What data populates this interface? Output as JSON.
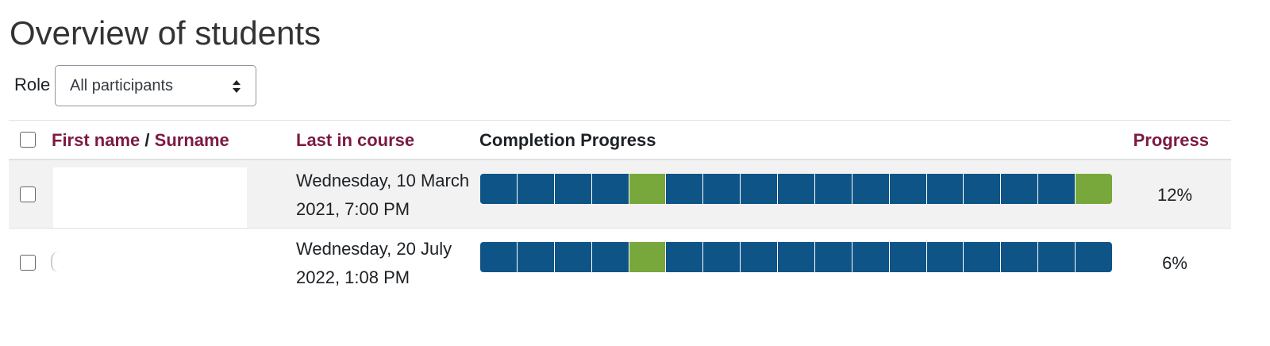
{
  "header": {
    "title": "Overview of students"
  },
  "filter": {
    "label": "Role",
    "value": "All participants"
  },
  "table": {
    "columns": {
      "first_name": "First name",
      "separator": "/",
      "surname": "Surname",
      "last_in_course": "Last in course",
      "completion": "Completion Progress",
      "progress": "Progress"
    },
    "rows": [
      {
        "last_in_course": [
          "Wednesday, 10 March",
          "2021, 7:00 PM"
        ],
        "progress": "12%",
        "blocks": [
          "#0f5487",
          "#0f5487",
          "#0f5487",
          "#0f5487",
          "#78a73b",
          "#0f5487",
          "#0f5487",
          "#0f5487",
          "#0f5487",
          "#0f5487",
          "#0f5487",
          "#0f5487",
          "#0f5487",
          "#0f5487",
          "#0f5487",
          "#0f5487",
          "#78a73b"
        ]
      },
      {
        "last_in_course": [
          "Wednesday, 20 July",
          "2022, 1:08 PM"
        ],
        "progress": "6%",
        "blocks": [
          "#0f5487",
          "#0f5487",
          "#0f5487",
          "#0f5487",
          "#78a73b",
          "#0f5487",
          "#0f5487",
          "#0f5487",
          "#0f5487",
          "#0f5487",
          "#0f5487",
          "#0f5487",
          "#0f5487",
          "#0f5487",
          "#0f5487",
          "#0f5487",
          "#0f5487"
        ]
      }
    ]
  }
}
